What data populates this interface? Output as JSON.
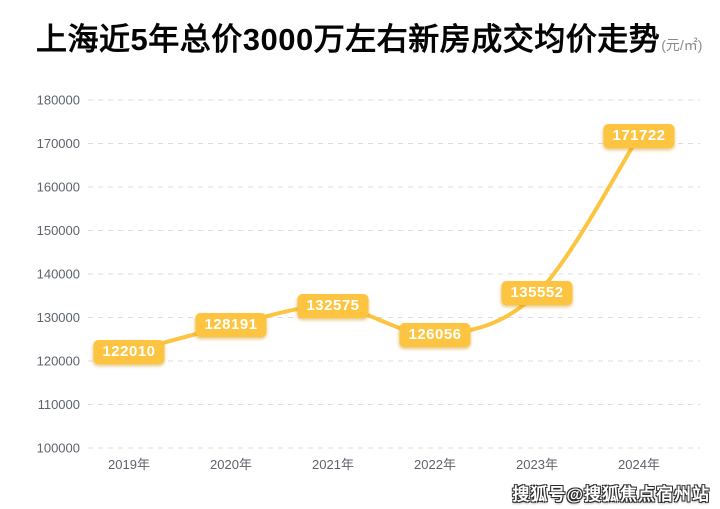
{
  "header": {
    "title": "上海近5年总价3000万左右新房成交均价走势",
    "unit": "(元/㎡)"
  },
  "chart_data": {
    "type": "line",
    "title": "上海近5年总价3000万左右新房成交均价走势",
    "unit_label": "元/㎡",
    "categories": [
      "2019年",
      "2020年",
      "2021年",
      "2022年",
      "2023年",
      "2024年"
    ],
    "values": [
      122010,
      128191,
      132575,
      126056,
      135552,
      171722
    ],
    "ylim": [
      100000,
      180000
    ],
    "y_ticks": [
      180000,
      170000,
      160000,
      150000,
      140000,
      130000,
      120000,
      110000,
      100000
    ],
    "grid": "horizontal-dashed",
    "legend": "none",
    "smooth": true,
    "line_color": "#FCC440",
    "label_bg_color": "#FCC440",
    "label_text_color": "#FFFFFF",
    "grid_color": "#DCDCDC",
    "axis_text_color": "#5E636B"
  },
  "watermark": {
    "text": "搜狐号@搜狐焦点宿州站"
  }
}
